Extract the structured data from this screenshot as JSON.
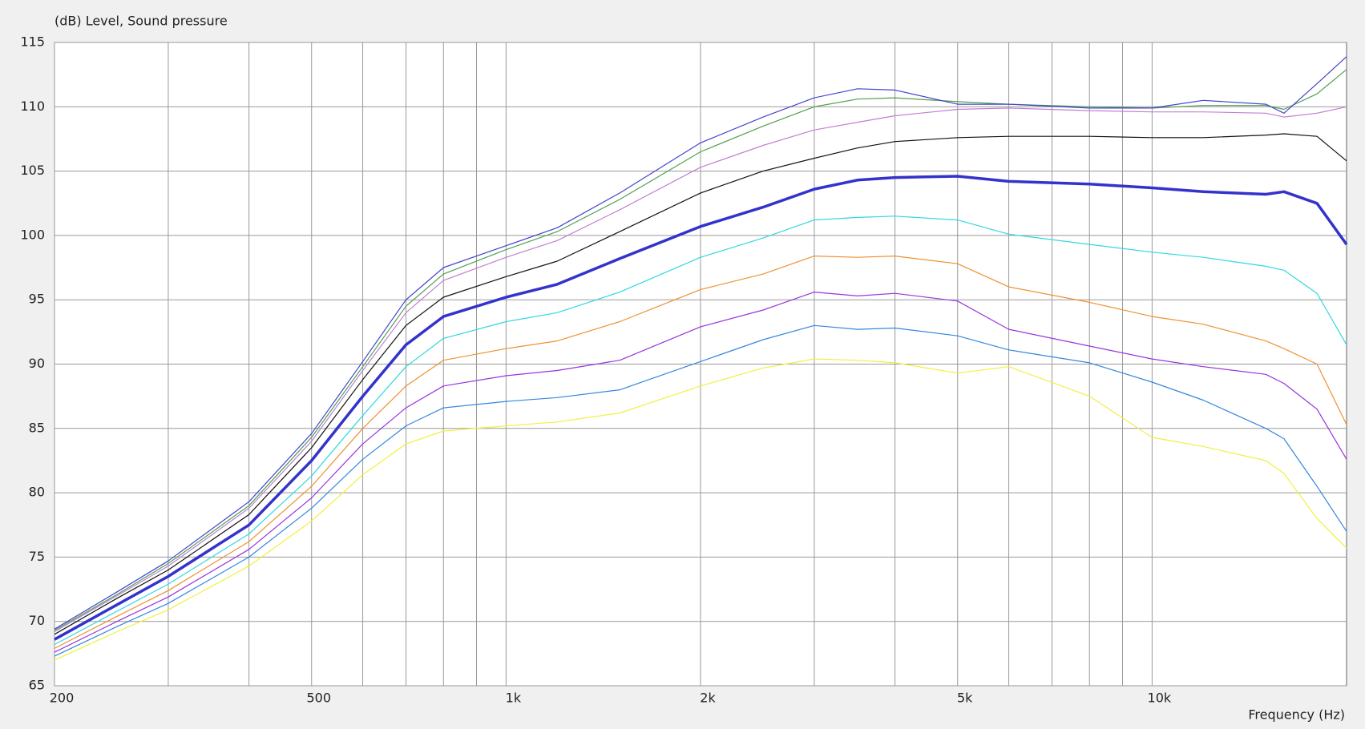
{
  "chart_data": {
    "type": "line",
    "ylabel": "(dB)  Level, Sound pressure",
    "xlabel": "Frequency (Hz)",
    "xscale": "log",
    "grid": true,
    "xlim": [
      200,
      20000
    ],
    "ylim": [
      65,
      115
    ],
    "xticks": [
      200,
      500,
      {
        "value": 1000,
        "label": "1k"
      },
      {
        "value": 2000,
        "label": "2k"
      },
      {
        "value": 5000,
        "label": "5k"
      },
      {
        "value": 10000,
        "label": "10k"
      }
    ],
    "xminor": [
      300,
      400,
      600,
      700,
      800,
      900,
      3000,
      4000,
      6000,
      7000,
      8000,
      9000
    ],
    "yticks": [
      65,
      70,
      75,
      80,
      85,
      90,
      95,
      100,
      105,
      110,
      115
    ],
    "x": [
      200,
      250,
      300,
      400,
      500,
      600,
      700,
      800,
      1000,
      1200,
      1500,
      2000,
      2500,
      3000,
      3500,
      4000,
      5000,
      6000,
      8000,
      10000,
      12000,
      15000,
      16000,
      18000,
      20000
    ],
    "series": [
      {
        "color": "#f0f040",
        "width": 1.2,
        "values": [
          67,
          69.2,
          70.9,
          74.3,
          77.8,
          81.4,
          83.8,
          84.8,
          85.2,
          85.5,
          86.2,
          88.3,
          89.7,
          90.4,
          90.3,
          90.1,
          89.3,
          89.8,
          87.5,
          84.3,
          83.6,
          82.5,
          81.5,
          78,
          75.7
        ]
      },
      {
        "color": "#3388dd",
        "width": 1.2,
        "values": [
          67.3,
          69.6,
          71.4,
          75,
          78.8,
          82.6,
          85.2,
          86.6,
          87.1,
          87.4,
          88,
          90.2,
          91.9,
          93,
          92.7,
          92.8,
          92.2,
          91.1,
          90.1,
          88.6,
          87.2,
          85,
          84.2,
          80.5,
          77
        ]
      },
      {
        "color": "#9933dd",
        "width": 1.2,
        "values": [
          67.6,
          70,
          71.9,
          75.6,
          79.6,
          83.8,
          86.6,
          88.3,
          89.1,
          89.5,
          90.3,
          92.9,
          94.2,
          95.6,
          95.3,
          95.5,
          94.9,
          92.7,
          91.4,
          90.4,
          89.8,
          89.2,
          88.5,
          86.5,
          82.6
        ]
      },
      {
        "color": "#f09030",
        "width": 1.2,
        "values": [
          67.9,
          70.4,
          72.4,
          76.2,
          80.5,
          85,
          88.3,
          90.3,
          91.2,
          91.8,
          93.3,
          95.8,
          97,
          98.4,
          98.3,
          98.4,
          97.8,
          96,
          94.8,
          93.7,
          93.1,
          91.8,
          91.2,
          90,
          85.3
        ]
      },
      {
        "color": "#30d8e0",
        "width": 1.2,
        "values": [
          68.2,
          70.8,
          72.9,
          76.8,
          81.3,
          86,
          89.8,
          92,
          93.3,
          94,
          95.6,
          98.3,
          99.8,
          101.2,
          101.4,
          101.5,
          101.2,
          100.1,
          99.3,
          98.7,
          98.3,
          97.6,
          97.3,
          95.5,
          91.5
        ]
      },
      {
        "color": "#3333cc",
        "width": 3.5,
        "values": [
          68.6,
          71.3,
          73.5,
          77.5,
          82.5,
          87.5,
          91.5,
          93.7,
          95.2,
          96.2,
          98.2,
          100.7,
          102.2,
          103.6,
          104.3,
          104.5,
          104.6,
          104.2,
          104,
          103.7,
          103.4,
          103.2,
          103.4,
          102.5,
          99.3
        ]
      },
      {
        "color": "#111111",
        "width": 1.2,
        "values": [
          69,
          71.8,
          74,
          78.3,
          83.5,
          88.8,
          93,
          95.2,
          96.8,
          98,
          100.3,
          103.3,
          105,
          106,
          106.8,
          107.3,
          107.6,
          107.7,
          107.7,
          107.6,
          107.6,
          107.8,
          107.9,
          107.7,
          105.8
        ]
      },
      {
        "color": "#c080d0",
        "width": 1.2,
        "values": [
          69.2,
          72,
          74.3,
          78.8,
          84,
          89.5,
          94,
          96.5,
          98.3,
          99.6,
          102,
          105.3,
          107,
          108.2,
          108.8,
          109.3,
          109.8,
          109.9,
          109.7,
          109.6,
          109.6,
          109.5,
          109.2,
          109.5,
          110
        ]
      },
      {
        "color": "#50a050",
        "width": 1.2,
        "values": [
          69.3,
          72.1,
          74.5,
          79,
          84.3,
          89.8,
          94.5,
          97,
          98.9,
          100.3,
          102.8,
          106.5,
          108.5,
          110,
          110.6,
          110.7,
          110.4,
          110.2,
          110,
          109.9,
          110.1,
          110.1,
          109.8,
          111,
          112.9
        ]
      },
      {
        "color": "#4444cc",
        "width": 1.2,
        "values": [
          69.4,
          72.3,
          74.7,
          79.3,
          84.6,
          90.2,
          95,
          97.5,
          99.2,
          100.6,
          103.3,
          107.2,
          109.2,
          110.7,
          111.4,
          111.3,
          110.2,
          110.2,
          109.9,
          109.9,
          110.5,
          110.2,
          109.5,
          111.8,
          113.9
        ]
      }
    ]
  }
}
